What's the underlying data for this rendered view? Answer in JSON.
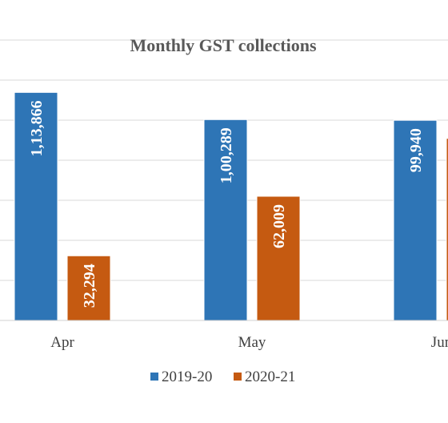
{
  "chart_data": {
    "type": "bar",
    "title": "Monthly GST collections",
    "categories": [
      "Apr",
      "May",
      "Jun"
    ],
    "series": [
      {
        "name": "2019-20",
        "color": "#2E75B6",
        "values": [
          113866,
          100289,
          99940
        ],
        "labels": [
          "1,13,866",
          "1,00,289",
          "99,940"
        ]
      },
      {
        "name": "2020-21",
        "color": "#C55A11",
        "values": [
          32294,
          62009,
          90917
        ],
        "labels": [
          "32,294",
          "62,009",
          ""
        ]
      }
    ],
    "ylim": [
      0,
      140000
    ],
    "grid": true,
    "legend_position": "bottom"
  }
}
